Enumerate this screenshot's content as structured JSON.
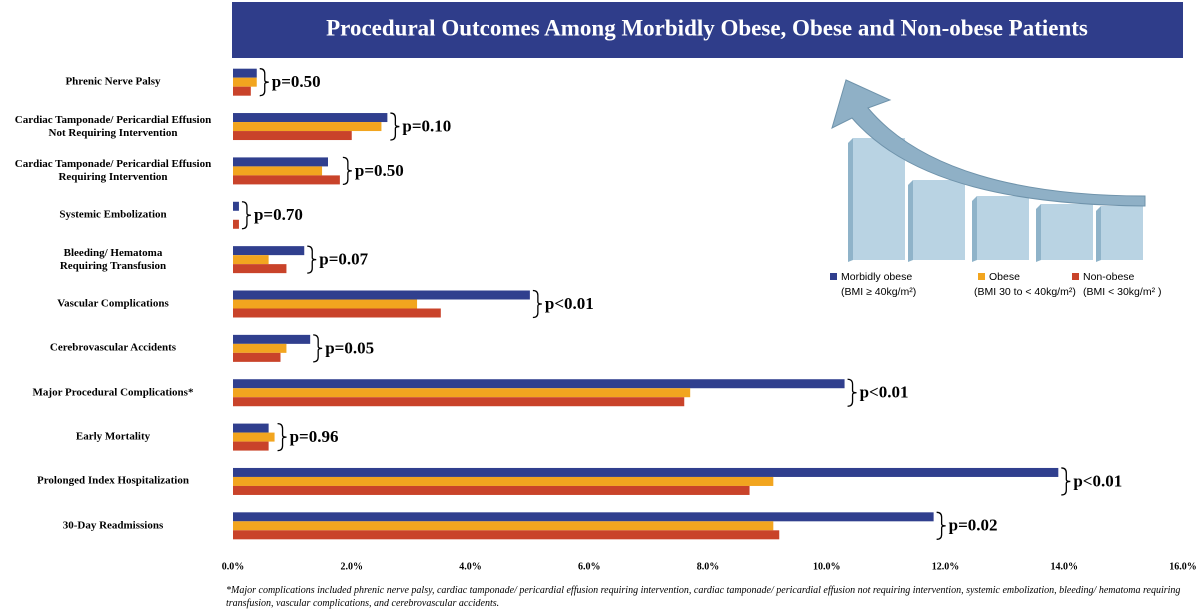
{
  "chart_data": {
    "type": "bar",
    "orientation": "horizontal",
    "title": "Procedural Outcomes Among Morbidly Obese, Obese and Non-obese Patients",
    "categories": [
      "Phrenic Nerve Palsy",
      "Cardiac Tamponade/ Pericardial Effusion\nNot Requiring Intervention",
      "Cardiac Tamponade/ Pericardial Effusion\nRequiring Intervention",
      "Systemic Embolization",
      "Bleeding/ Hematoma\nRequiring Transfusion",
      "Vascular Complications",
      "Cerebrovascular Accidents",
      "Major Procedural Complications*",
      "Early Mortality",
      "Prolonged Index Hospitalization",
      "30-Day Readmissions"
    ],
    "series": [
      {
        "name": "Morbidly obese",
        "note": "(BMI ≥ 40kg/m²)",
        "color": "#303f8e",
        "values": [
          0.4,
          2.6,
          1.6,
          0.1,
          1.2,
          5.0,
          1.3,
          10.3,
          0.6,
          13.9,
          11.8
        ]
      },
      {
        "name": "Obese",
        "note": "(BMI 30 to < 40kg/m²)",
        "color": "#f2a51f",
        "values": [
          0.4,
          2.5,
          1.5,
          0.0,
          0.6,
          3.1,
          0.9,
          7.7,
          0.7,
          9.1,
          9.1
        ]
      },
      {
        "name": "Non-obese",
        "note": "(BMI < 30kg/m² )",
        "color": "#c9432a",
        "values": [
          0.3,
          2.0,
          1.8,
          0.1,
          0.9,
          3.5,
          0.8,
          7.6,
          0.6,
          8.7,
          9.2
        ]
      }
    ],
    "p_values": [
      "p=0.50",
      "p=0.10",
      "p=0.50",
      "p=0.70",
      "p=0.07",
      "p<0.01",
      "p=0.05",
      "p<0.01",
      "p=0.96",
      "p<0.01",
      "p=0.02"
    ],
    "xlim": [
      0,
      16
    ],
    "xticks": [
      {
        "value": 0,
        "label": "0.0%"
      },
      {
        "value": 2,
        "label": "2.0%"
      },
      {
        "value": 4,
        "label": "4.0%"
      },
      {
        "value": 6,
        "label": "6.0%"
      },
      {
        "value": 8,
        "label": "8.0%"
      },
      {
        "value": 10,
        "label": "10.0%"
      },
      {
        "value": 12,
        "label": "12.0%"
      },
      {
        "value": 14,
        "label": "14.0%"
      },
      {
        "value": 16,
        "label": "16.0%"
      }
    ],
    "footnote": "*Major complications included phrenic nerve palsy, cardiac tamponade/ pericardial effusion requiring intervention, cardiac tamponade/ pericardial effusion not requiring intervention, systemic embolization, bleeding/ hematoma requiring transfusion, vascular complications, and cerebrovascular accidents."
  }
}
